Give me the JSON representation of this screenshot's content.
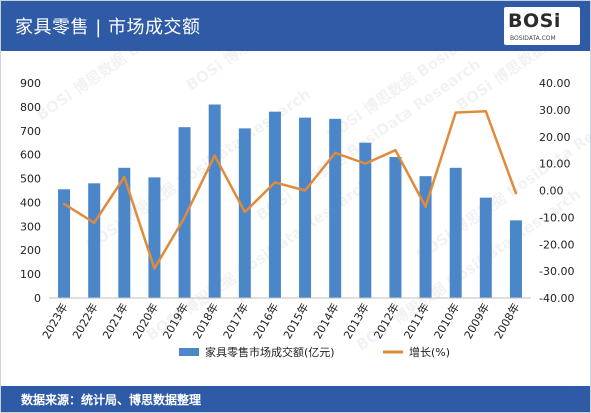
{
  "header": {
    "title": "家具零售 | 市场成交额"
  },
  "brand": {
    "logo_text": "BOSi",
    "logo_sub": "BOSIDATA.COM",
    "watermark": "BOSi 博思数据 BosiData Research"
  },
  "footer": {
    "source": "数据来源：统计局、博思数据整理"
  },
  "colors": {
    "header_bg": "#2f5aa6",
    "bar": "#4a86c8",
    "line": "#e08a3c"
  },
  "chart_data": {
    "type": "bar+line",
    "categories": [
      "2023年",
      "2022年",
      "2021年",
      "2020年",
      "2019年",
      "2018年",
      "2017年",
      "2016年",
      "2015年",
      "2014年",
      "2013年",
      "2012年",
      "2011年",
      "2010年",
      "2009年",
      "2008年"
    ],
    "series": [
      {
        "name": "家具零售市场成交额(亿元)",
        "type": "bar",
        "axis": "left",
        "values": [
          455,
          480,
          545,
          505,
          715,
          810,
          710,
          780,
          755,
          750,
          650,
          590,
          510,
          545,
          420,
          325
        ]
      },
      {
        "name": "增长(%)",
        "type": "line",
        "axis": "right",
        "values": [
          -5,
          -12,
          5,
          -29,
          -10,
          13,
          -8,
          3,
          0,
          14,
          10,
          15,
          -6,
          29,
          29.5,
          -1
        ]
      }
    ],
    "y_left": {
      "min": 0,
      "max": 900,
      "step": 100,
      "ticks": [
        "0",
        "100",
        "200",
        "300",
        "400",
        "500",
        "600",
        "700",
        "800",
        "900"
      ]
    },
    "y_right": {
      "min": -40,
      "max": 40,
      "step": 10,
      "ticks": [
        "-40.00",
        "-30.00",
        "-20.00",
        "-10.00",
        "0.00",
        "10.00",
        "20.00",
        "30.00",
        "40.00"
      ]
    },
    "grid": false,
    "legend_position": "bottom"
  }
}
